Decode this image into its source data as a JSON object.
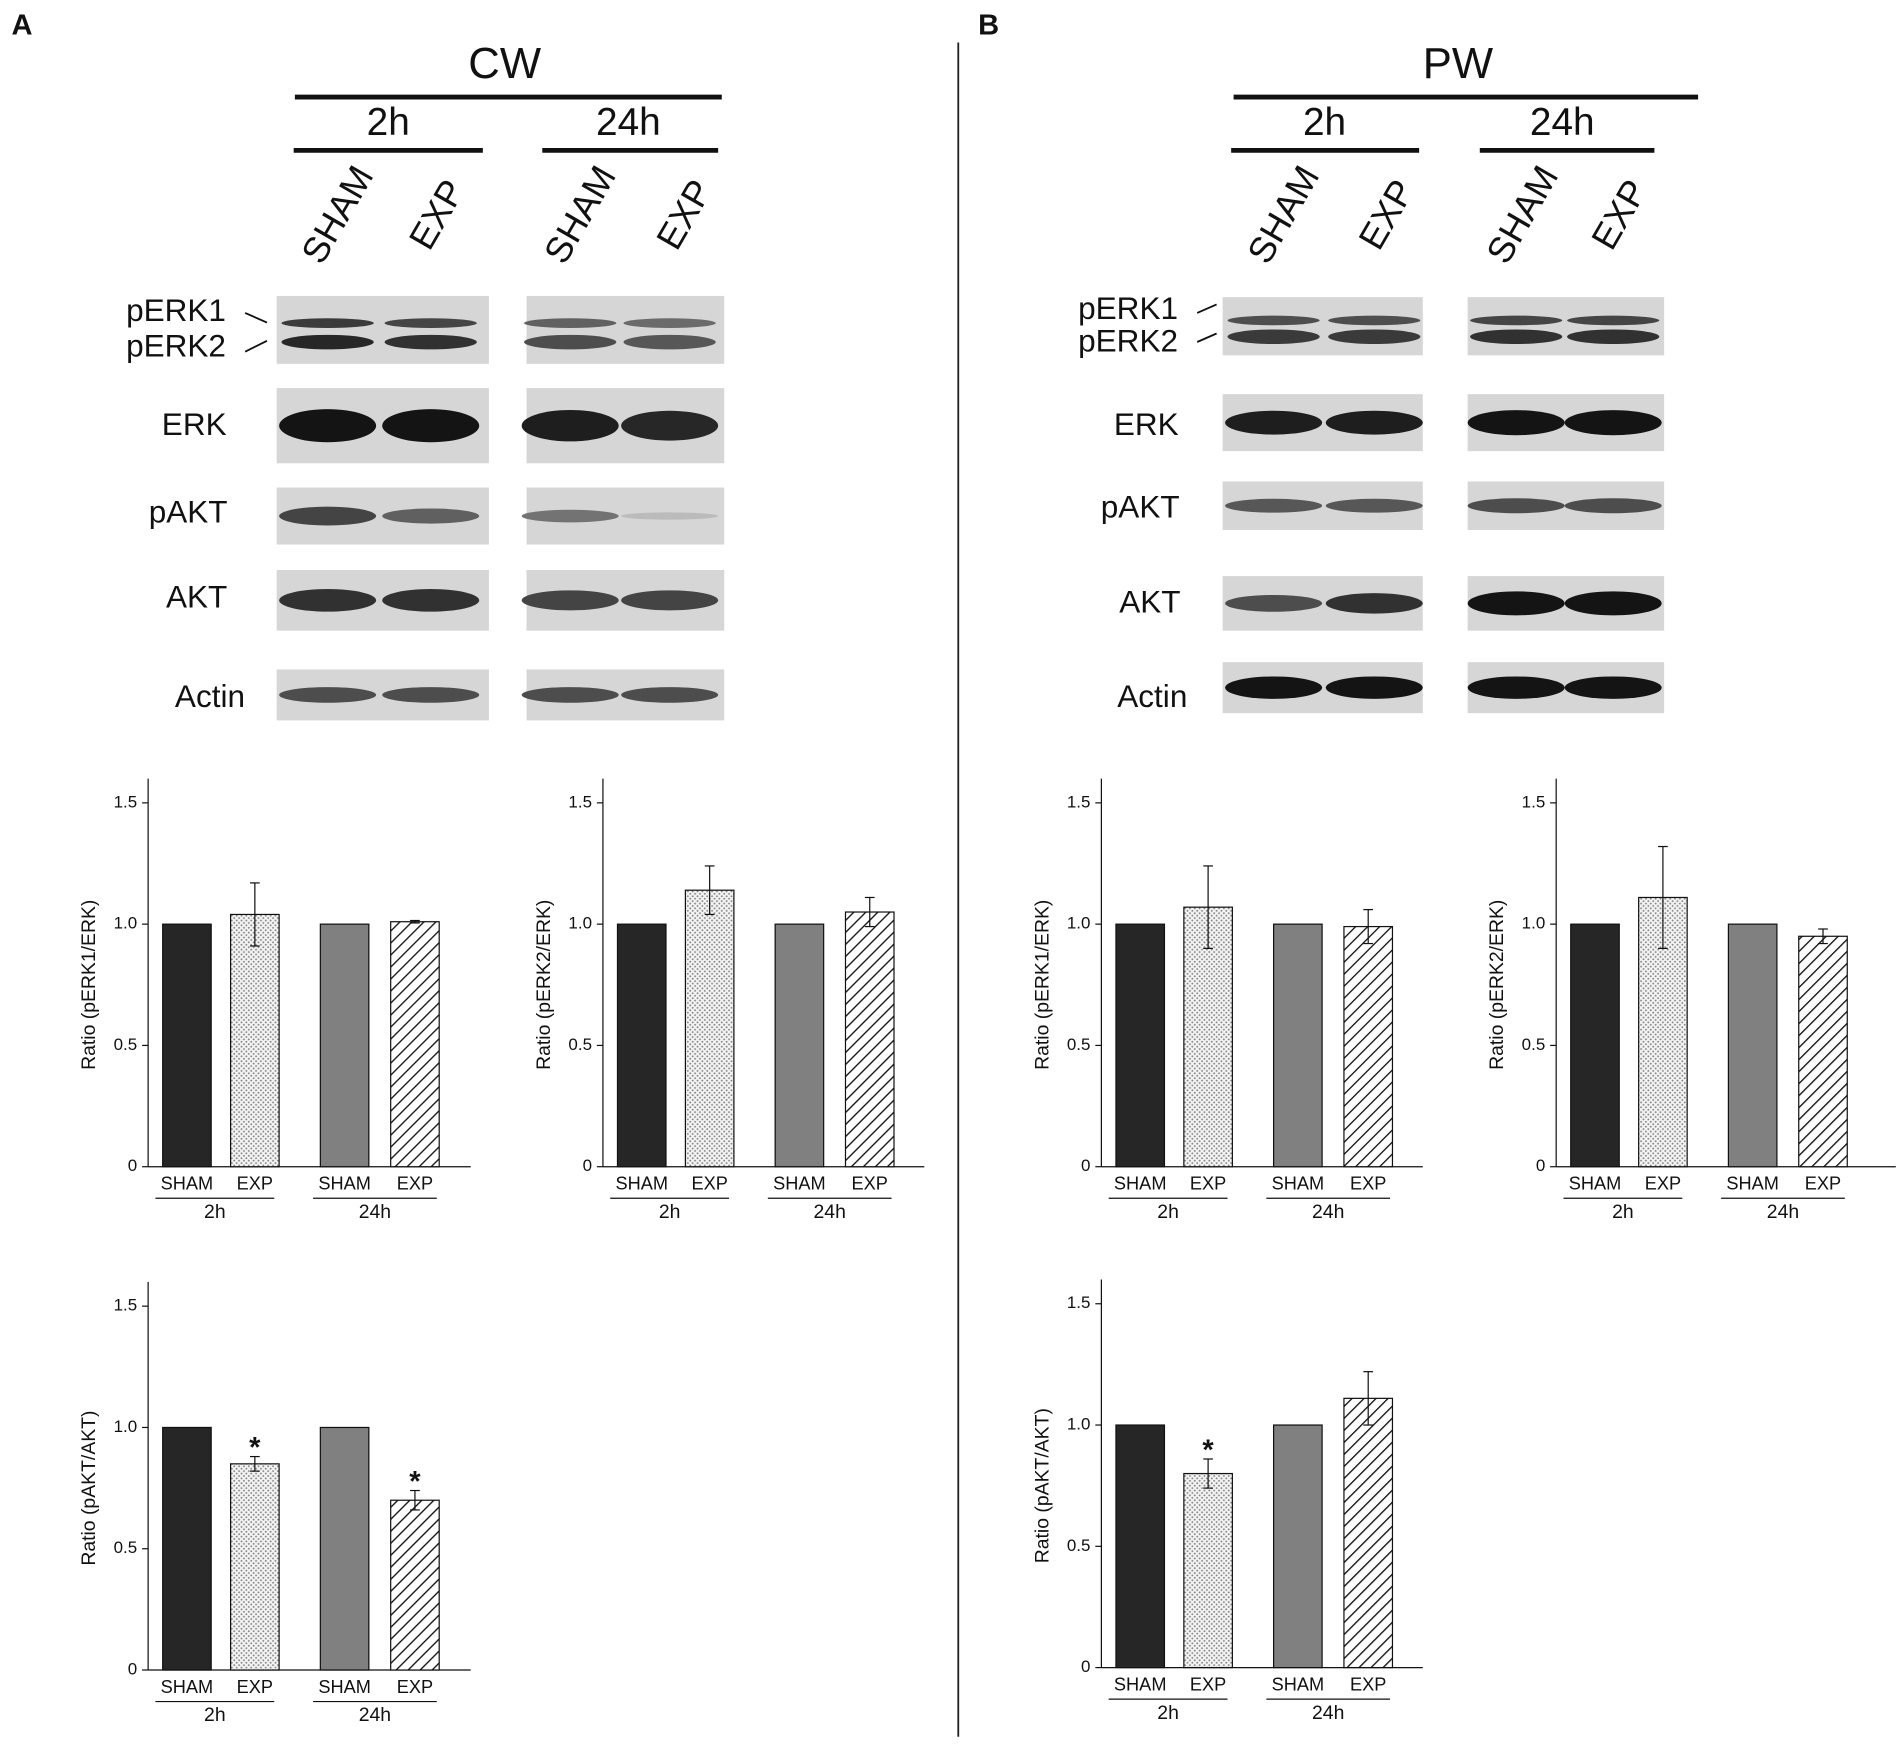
{
  "panels": [
    {
      "label": "A",
      "condition": "CW",
      "times": [
        "2h",
        "24h"
      ],
      "groups": [
        "SHAM",
        "EXP",
        "SHAM",
        "EXP"
      ],
      "proteins": [
        "pERK1",
        "pERK2",
        "ERK",
        "pAKT",
        "AKT",
        "Actin"
      ]
    },
    {
      "label": "B",
      "condition": "PW",
      "times": [
        "2h",
        "24h"
      ],
      "groups": [
        "SHAM",
        "EXP",
        "SHAM",
        "EXP"
      ],
      "proteins": [
        "pERK1",
        "pERK2",
        "ERK",
        "pAKT",
        "AKT",
        "Actin"
      ]
    }
  ],
  "chart_data": [
    {
      "type": "bar",
      "y_label": "Ratio (pERK1/ERK)",
      "categories": [
        "SHAM",
        "EXP",
        "SHAM",
        "EXP"
      ],
      "groups": [
        "2h",
        "24h"
      ],
      "values": [
        1,
        1.04,
        1,
        1.01
      ],
      "errors": [
        null,
        0.13,
        null,
        0.005
      ],
      "significance": [
        null,
        null,
        null,
        null
      ],
      "fills": [
        "#262626",
        "dots",
        "#808080",
        "hatch"
      ],
      "ylim": [
        0,
        1.5
      ],
      "yticks": [
        0,
        0.5,
        {
          "value": 1,
          "label": "1.0"
        },
        1.5
      ]
    },
    {
      "type": "bar",
      "y_label": "Ratio (pERK2/ERK)",
      "categories": [
        "SHAM",
        "EXP",
        "SHAM",
        "EXP"
      ],
      "groups": [
        "2h",
        "24h"
      ],
      "values": [
        1,
        1.14,
        1,
        1.05
      ],
      "errors": [
        null,
        0.1,
        null,
        0.06
      ],
      "significance": [
        null,
        null,
        null,
        null
      ],
      "fills": [
        "#262626",
        "dots",
        "#808080",
        "hatch"
      ],
      "ylim": [
        0,
        1.5
      ],
      "yticks": [
        0,
        0.5,
        {
          "value": 1,
          "label": "1.0"
        },
        1.5
      ]
    },
    {
      "type": "bar",
      "y_label": "Ratio (pAKT/AKT)",
      "categories": [
        "SHAM",
        "EXP",
        "SHAM",
        "EXP"
      ],
      "groups": [
        "2h",
        "24h"
      ],
      "values": [
        1,
        0.85,
        1,
        0.7
      ],
      "errors": [
        null,
        0.03,
        null,
        0.04
      ],
      "significance": [
        null,
        "*",
        null,
        "*"
      ],
      "fills": [
        "#262626",
        "dots",
        "#808080",
        "hatch"
      ],
      "ylim": [
        0,
        1.5
      ],
      "yticks": [
        0,
        0.5,
        {
          "value": 1,
          "label": "1.0"
        },
        1.5
      ]
    },
    {
      "type": "bar",
      "y_label": "Ratio (pERK1/ERK)",
      "categories": [
        "SHAM",
        "EXP",
        "SHAM",
        "EXP"
      ],
      "groups": [
        "2h",
        "24h"
      ],
      "values": [
        1,
        1.07,
        1,
        0.99
      ],
      "errors": [
        null,
        0.17,
        null,
        0.07
      ],
      "significance": [
        null,
        null,
        null,
        null
      ],
      "fills": [
        "#262626",
        "dots",
        "#808080",
        "hatch"
      ],
      "ylim": [
        0,
        1.5
      ],
      "yticks": [
        0,
        0.5,
        {
          "value": 1,
          "label": "1.0"
        },
        1.5
      ]
    },
    {
      "type": "bar",
      "y_label": "Ratio (pERK2/ERK)",
      "categories": [
        "SHAM",
        "EXP",
        "SHAM",
        "EXP"
      ],
      "groups": [
        "2h",
        "24h"
      ],
      "values": [
        1,
        1.11,
        1,
        0.95
      ],
      "errors": [
        null,
        0.21,
        null,
        0.03
      ],
      "significance": [
        null,
        null,
        null,
        null
      ],
      "fills": [
        "#262626",
        "dots",
        "#808080",
        "hatch"
      ],
      "ylim": [
        0,
        1.5
      ],
      "yticks": [
        0,
        0.5,
        {
          "value": 1,
          "label": "1.0"
        },
        1.5
      ]
    },
    {
      "type": "bar",
      "y_label": "Ratio (pAKT/AKT)",
      "categories": [
        "SHAM",
        "EXP",
        "SHAM",
        "EXP"
      ],
      "groups": [
        "2h",
        "24h"
      ],
      "values": [
        1,
        0.8,
        1,
        1.11
      ],
      "errors": [
        null,
        0.06,
        null,
        0.11
      ],
      "significance": [
        null,
        "*",
        null,
        null
      ],
      "fills": [
        "#262626",
        "dots",
        "#808080",
        "hatch"
      ],
      "ylim": [
        0,
        1.5
      ],
      "yticks": [
        0,
        0.5,
        {
          "value": 1,
          "label": "1.0"
        },
        1.5
      ]
    }
  ]
}
